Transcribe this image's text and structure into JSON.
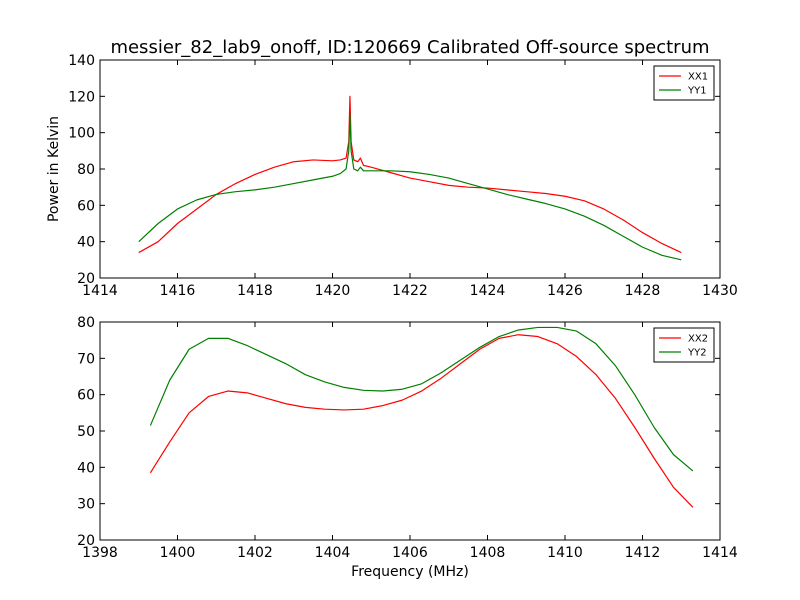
{
  "title": "messier_82_lab9_onoff, ID:120669 Calibrated Off-source spectrum",
  "chart_data": [
    {
      "type": "line",
      "xlabel": "",
      "ylabel": "Power in Kelvin",
      "xlim": [
        1414,
        1430
      ],
      "ylim": [
        20,
        140
      ],
      "xticks": [
        "1414",
        "1416",
        "1418",
        "1420",
        "1422",
        "1424",
        "1426",
        "1428",
        "1430"
      ],
      "yticks": [
        "20",
        "40",
        "60",
        "80",
        "100",
        "120",
        "140"
      ],
      "legend": "top-right",
      "series": [
        {
          "name": "XX1",
          "color": "#ff0000",
          "x": [
            1415.0,
            1415.5,
            1416.0,
            1416.5,
            1417.0,
            1417.5,
            1418.0,
            1418.5,
            1419.0,
            1419.5,
            1420.0,
            1420.2,
            1420.35,
            1420.42,
            1420.45,
            1420.48,
            1420.55,
            1420.65,
            1420.72,
            1420.8,
            1421.0,
            1421.5,
            1422.0,
            1422.5,
            1423.0,
            1423.5,
            1424.0,
            1424.5,
            1425.0,
            1425.5,
            1426.0,
            1426.5,
            1427.0,
            1427.5,
            1428.0,
            1428.5,
            1429.0
          ],
          "y": [
            34,
            40,
            50,
            58,
            66,
            72,
            77,
            81,
            84,
            85,
            84.5,
            85,
            86,
            95,
            120,
            95,
            85,
            84,
            86,
            82,
            81,
            78,
            75,
            73,
            71,
            70,
            69.5,
            68.5,
            67.5,
            66.5,
            65,
            62.5,
            58,
            52,
            45,
            39,
            34
          ]
        },
        {
          "name": "YY1",
          "color": "#008000",
          "x": [
            1415.0,
            1415.5,
            1416.0,
            1416.5,
            1417.0,
            1417.5,
            1418.0,
            1418.5,
            1419.0,
            1419.5,
            1420.0,
            1420.2,
            1420.35,
            1420.42,
            1420.45,
            1420.48,
            1420.55,
            1420.65,
            1420.72,
            1420.8,
            1421.0,
            1421.5,
            1422.0,
            1422.5,
            1423.0,
            1423.5,
            1424.0,
            1424.5,
            1425.0,
            1425.5,
            1426.0,
            1426.5,
            1427.0,
            1427.5,
            1428.0,
            1428.5,
            1429.0
          ],
          "y": [
            40,
            50,
            58,
            63,
            66,
            67.5,
            68.5,
            70,
            72,
            74,
            76,
            77.5,
            80,
            90,
            110,
            90,
            80,
            79,
            81,
            79,
            79,
            79,
            78.5,
            77,
            75,
            72,
            69,
            66,
            63.5,
            61,
            58,
            54,
            49,
            43,
            37,
            32.5,
            30
          ]
        }
      ]
    },
    {
      "type": "line",
      "xlabel": "Frequency (MHz)",
      "ylabel": "",
      "xlim": [
        1398,
        1414
      ],
      "ylim": [
        20,
        80
      ],
      "xticks": [
        "1398",
        "1400",
        "1402",
        "1404",
        "1406",
        "1408",
        "1410",
        "1412",
        "1414"
      ],
      "yticks": [
        "20",
        "30",
        "40",
        "50",
        "60",
        "70",
        "80"
      ],
      "legend": "top-right",
      "series": [
        {
          "name": "XX2",
          "color": "#ff0000",
          "x": [
            1399.3,
            1399.8,
            1400.3,
            1400.8,
            1401.3,
            1401.8,
            1402.3,
            1402.8,
            1403.3,
            1403.8,
            1404.3,
            1404.8,
            1405.3,
            1405.8,
            1406.3,
            1406.8,
            1407.3,
            1407.8,
            1408.3,
            1408.8,
            1409.3,
            1409.8,
            1410.3,
            1410.8,
            1411.3,
            1411.8,
            1412.3,
            1412.8,
            1413.3
          ],
          "y": [
            38.5,
            47,
            55,
            59.5,
            61,
            60.5,
            59,
            57.5,
            56.5,
            56,
            55.8,
            56,
            57,
            58.5,
            61,
            64.5,
            68.5,
            72.5,
            75.5,
            76.5,
            76,
            74,
            70.5,
            65.5,
            59,
            51,
            42.5,
            34.5,
            29
          ]
        },
        {
          "name": "YY2",
          "color": "#008000",
          "x": [
            1399.3,
            1399.8,
            1400.3,
            1400.8,
            1401.3,
            1401.8,
            1402.3,
            1402.8,
            1403.3,
            1403.8,
            1404.3,
            1404.8,
            1405.3,
            1405.8,
            1406.3,
            1406.8,
            1407.3,
            1407.8,
            1408.3,
            1408.8,
            1409.3,
            1409.8,
            1410.3,
            1410.8,
            1411.3,
            1411.8,
            1412.3,
            1412.8,
            1413.3
          ],
          "y": [
            51.5,
            64,
            72.5,
            75.5,
            75.5,
            73.5,
            71,
            68.5,
            65.5,
            63.5,
            62,
            61.2,
            61,
            61.5,
            63,
            66,
            69.5,
            73,
            76,
            77.8,
            78.5,
            78.5,
            77.5,
            74,
            68,
            60,
            51,
            43.5,
            39
          ]
        }
      ]
    }
  ]
}
